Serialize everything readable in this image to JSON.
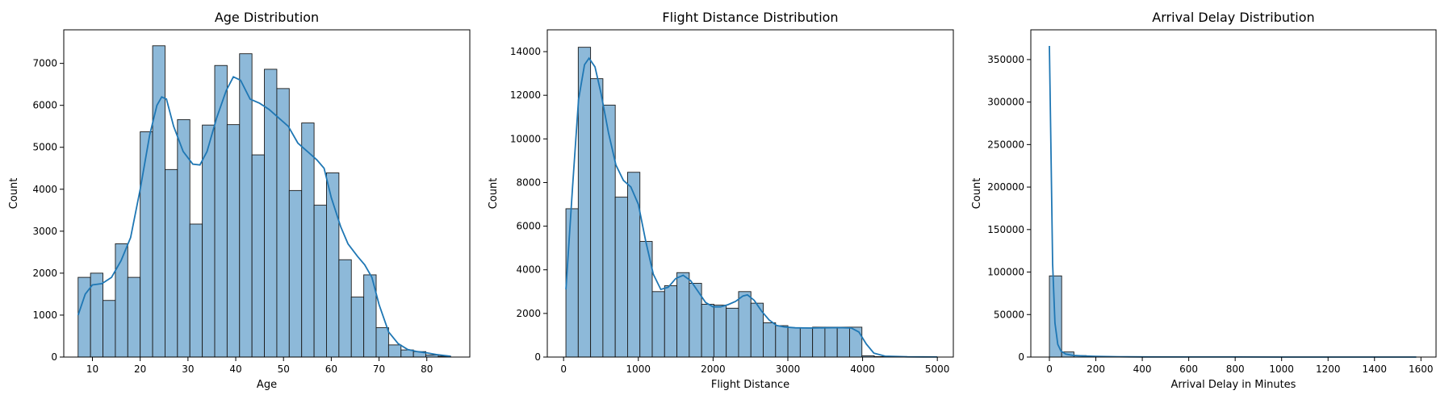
{
  "chart_data": [
    {
      "type": "bar",
      "title": "Age Distribution",
      "xlabel": "Age",
      "ylabel": "Count",
      "xlim": [
        4,
        89
      ],
      "ylim": [
        0,
        7800
      ],
      "xticks": [
        10,
        20,
        30,
        40,
        50,
        60,
        70,
        80
      ],
      "yticks": [
        0,
        1000,
        2000,
        3000,
        4000,
        5000,
        6000,
        7000
      ],
      "bin_start": 7,
      "bin_width": 2.6,
      "values": [
        1900,
        2000,
        1350,
        2700,
        1900,
        5370,
        7420,
        4470,
        5660,
        3170,
        5530,
        6950,
        5540,
        7230,
        4820,
        6860,
        6400,
        3970,
        5580,
        3620,
        4390,
        2320,
        1430,
        1960,
        700,
        290,
        170,
        130,
        50,
        20
      ],
      "kde": [
        [
          7,
          1000
        ],
        [
          8.5,
          1500
        ],
        [
          10,
          1720
        ],
        [
          12,
          1750
        ],
        [
          14,
          1900
        ],
        [
          16,
          2300
        ],
        [
          18,
          2850
        ],
        [
          20,
          4000
        ],
        [
          22,
          5300
        ],
        [
          23.5,
          6000
        ],
        [
          24.5,
          6200
        ],
        [
          25.5,
          6150
        ],
        [
          27,
          5500
        ],
        [
          29,
          4900
        ],
        [
          31,
          4600
        ],
        [
          32.5,
          4580
        ],
        [
          34,
          4900
        ],
        [
          36,
          5700
        ],
        [
          38,
          6350
        ],
        [
          39.5,
          6680
        ],
        [
          41,
          6600
        ],
        [
          43,
          6150
        ],
        [
          45,
          6050
        ],
        [
          47,
          5900
        ],
        [
          49,
          5700
        ],
        [
          51,
          5500
        ],
        [
          53,
          5100
        ],
        [
          55,
          4900
        ],
        [
          57,
          4700
        ],
        [
          58.5,
          4500
        ],
        [
          60,
          3800
        ],
        [
          62,
          3100
        ],
        [
          63.5,
          2700
        ],
        [
          65.5,
          2400
        ],
        [
          67,
          2200
        ],
        [
          68.5,
          1900
        ],
        [
          70,
          1250
        ],
        [
          72,
          600
        ],
        [
          74,
          320
        ],
        [
          76,
          180
        ],
        [
          78,
          130
        ],
        [
          80,
          100
        ],
        [
          82,
          60
        ],
        [
          85,
          20
        ]
      ]
    },
    {
      "type": "bar",
      "title": "Flight Distance Distribution",
      "xlabel": "Flight Distance",
      "ylabel": "Count",
      "xlim": [
        -218,
        5214
      ],
      "ylim": [
        0,
        15000
      ],
      "xticks": [
        0,
        1000,
        2000,
        3000,
        4000,
        5000
      ],
      "yticks": [
        0,
        2000,
        4000,
        6000,
        8000,
        10000,
        12000,
        14000
      ],
      "bin_start": 31,
      "bin_width": 165,
      "values": [
        6800,
        14200,
        12760,
        11550,
        7330,
        8470,
        5300,
        3000,
        3270,
        3870,
        3380,
        2420,
        2380,
        2240,
        3000,
        2470,
        1570,
        1440,
        1350,
        1340,
        1370,
        1370,
        1370,
        1370,
        60,
        20,
        10,
        10,
        5,
        5
      ],
      "kde": [
        [
          31,
          3100
        ],
        [
          120,
          7800
        ],
        [
          200,
          11800
        ],
        [
          280,
          13400
        ],
        [
          340,
          13700
        ],
        [
          420,
          13300
        ],
        [
          500,
          12100
        ],
        [
          600,
          10300
        ],
        [
          700,
          8800
        ],
        [
          800,
          8100
        ],
        [
          900,
          7800
        ],
        [
          1000,
          7000
        ],
        [
          1100,
          5300
        ],
        [
          1200,
          3800
        ],
        [
          1300,
          3100
        ],
        [
          1400,
          3200
        ],
        [
          1500,
          3600
        ],
        [
          1600,
          3750
        ],
        [
          1700,
          3500
        ],
        [
          1800,
          3000
        ],
        [
          1900,
          2500
        ],
        [
          2000,
          2300
        ],
        [
          2100,
          2300
        ],
        [
          2200,
          2400
        ],
        [
          2300,
          2550
        ],
        [
          2400,
          2800
        ],
        [
          2460,
          2850
        ],
        [
          2550,
          2600
        ],
        [
          2650,
          2100
        ],
        [
          2750,
          1700
        ],
        [
          2850,
          1450
        ],
        [
          2950,
          1380
        ],
        [
          3100,
          1340
        ],
        [
          3300,
          1330
        ],
        [
          3500,
          1340
        ],
        [
          3700,
          1350
        ],
        [
          3850,
          1330
        ],
        [
          3950,
          1150
        ],
        [
          4050,
          600
        ],
        [
          4150,
          180
        ],
        [
          4300,
          40
        ],
        [
          4600,
          10
        ],
        [
          5000,
          5
        ]
      ]
    },
    {
      "type": "bar",
      "title": "Arrival Delay Distribution",
      "xlabel": "Arrival Delay in Minutes",
      "ylabel": "Count",
      "xlim": [
        -80,
        1665
      ],
      "ylim": [
        0,
        385000
      ],
      "xticks": [
        0,
        200,
        400,
        600,
        800,
        1000,
        1200,
        1400,
        1600
      ],
      "yticks": [
        0,
        50000,
        100000,
        150000,
        200000,
        250000,
        300000,
        350000
      ],
      "bin_start": 0,
      "bin_width": 52.8,
      "values": [
        95500,
        6000,
        1700,
        800,
        400,
        250,
        150,
        100,
        70,
        50,
        40,
        30,
        25,
        20,
        15,
        12,
        10,
        8,
        7,
        6,
        5,
        4,
        4,
        3,
        3,
        2,
        2,
        2,
        1,
        1
      ],
      "kde": [
        [
          0,
          366000
        ],
        [
          6,
          260000
        ],
        [
          14,
          110000
        ],
        [
          24,
          40000
        ],
        [
          36,
          15000
        ],
        [
          50,
          7000
        ],
        [
          70,
          3500
        ],
        [
          100,
          2000
        ],
        [
          150,
          1200
        ],
        [
          200,
          800
        ],
        [
          300,
          400
        ],
        [
          400,
          200
        ],
        [
          600,
          100
        ],
        [
          800,
          60
        ],
        [
          1000,
          40
        ],
        [
          1200,
          30
        ],
        [
          1400,
          20
        ],
        [
          1580,
          10
        ]
      ]
    }
  ],
  "colors": {
    "bar_fill": "#8db9d9",
    "bar_edge": "#1a1a1a",
    "kde_line": "#1f77b4",
    "axes": "#000000"
  }
}
